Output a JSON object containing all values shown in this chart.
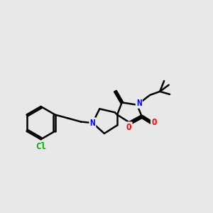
{
  "bg_color": "#e8e8e8",
  "atom_colors": {
    "C": "#000000",
    "N": "#0000ff",
    "O": "#ff0000",
    "Cl": "#00aa00"
  },
  "bond_color": "#000000",
  "bond_width": 1.8,
  "figsize": [
    3.0,
    3.0
  ],
  "dpi": 100
}
